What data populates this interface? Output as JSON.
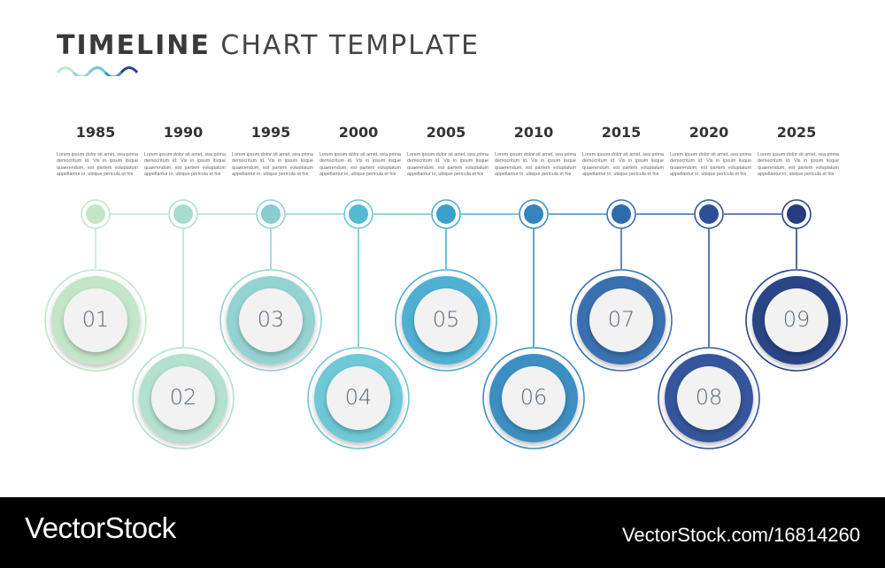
{
  "title": {
    "bold": "TIMELINE",
    "light": "CHART TEMPLATE"
  },
  "description_text": "Lorem ipsum dolor sit amet, sea prima democritum id. Vis in ipsum lisque quaerendum, est partem voluptatum appellantur in, ubique pericula et his",
  "colors": {
    "ring": [
      "#c4e6c8",
      "#b3e0cf",
      "#95d3d2",
      "#6ec8d6",
      "#50b0d2",
      "#3e8fc2",
      "#3a70b0",
      "#34579c",
      "#2b4486"
    ],
    "dot": [
      "#c4e6c8",
      "#a8dccc",
      "#88cdd0",
      "#56b9d3",
      "#3c9fcc",
      "#3585bd",
      "#2f6aab",
      "#2d4f96",
      "#253c7e"
    ],
    "line": [
      "#c4e6c8",
      "#b0e0cf",
      "#95d3d2",
      "#6ec8d6",
      "#50b0d2",
      "#3e8fc2",
      "#3a70b0",
      "#34579c",
      "#2b4486"
    ]
  },
  "items": [
    {
      "year": "1985",
      "number": "01",
      "position": "up"
    },
    {
      "year": "1990",
      "number": "02",
      "position": "down"
    },
    {
      "year": "1995",
      "number": "03",
      "position": "up"
    },
    {
      "year": "2000",
      "number": "04",
      "position": "down"
    },
    {
      "year": "2005",
      "number": "05",
      "position": "up"
    },
    {
      "year": "2010",
      "number": "06",
      "position": "down"
    },
    {
      "year": "2015",
      "number": "07",
      "position": "up"
    },
    {
      "year": "2020",
      "number": "08",
      "position": "down"
    },
    {
      "year": "2025",
      "number": "09",
      "position": "up"
    }
  ],
  "footer": {
    "brand": "VectorStock",
    "url": "VectorStock.com/16814260"
  }
}
